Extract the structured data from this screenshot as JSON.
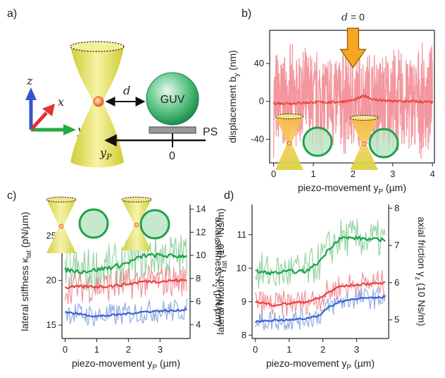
{
  "colors": {
    "red": "#e8413c",
    "pink": "#f28b94",
    "green": "#1ea24a",
    "lightgreen": "#8fd19e",
    "blue": "#3a62c8",
    "lightblue": "#8da6e4",
    "beam": "#d6d43a",
    "beam_light": "#f4f1a0",
    "guv": "#3fb872",
    "arrow": "#f5a623",
    "axis_z": "#3355cc",
    "axis_x": "#e03333",
    "axis_y": "#22aa44"
  },
  "panel_a": {
    "label": "a)",
    "axes": {
      "z": "z",
      "x": "x",
      "y": "y"
    },
    "d_label": "d",
    "guv_label": "GUV",
    "ps_label": "PS",
    "zero_label": "0",
    "yp_label": "y",
    "yp_sub": "P"
  },
  "chart_data": [
    {
      "id": "b",
      "panel_label": "b)",
      "type": "line",
      "title": "",
      "xlabel": "piezo-movement y",
      "xlabel_sub": "P",
      "xlabel_unit": "(µm)",
      "ylabel": "displacement b",
      "ylabel_sub": "y",
      "ylabel_unit": "(nm)",
      "xlim": [
        -0.1,
        4.05
      ],
      "ylim": [
        -65,
        75
      ],
      "xticks": [
        0,
        1,
        2,
        3,
        4
      ],
      "yticks": [
        -40,
        0,
        40
      ],
      "annotation": {
        "text_left": "d",
        "text_right": "= 0",
        "x": 2.0
      },
      "series": [
        {
          "kind": "band",
          "x": [
            0,
            4
          ],
          "noise_amplitude": 62,
          "color": "pink"
        },
        {
          "kind": "mean",
          "x": [
            0,
            0.5,
            1.0,
            1.5,
            2.0,
            2.3,
            2.5,
            3.0,
            3.5,
            4.0
          ],
          "y": [
            -2,
            -2,
            -1,
            -1,
            1,
            6,
            2,
            0,
            0,
            -1
          ],
          "color": "red"
        }
      ]
    },
    {
      "id": "c",
      "panel_label": "c)",
      "type": "line",
      "title": "",
      "xlabel": "piezo-movement y",
      "xlabel_sub": "P",
      "xlabel_unit": "(µm)",
      "ylabel_left": "lateral stiffness κ",
      "ylabel_left_sub": "lat",
      "ylabel_left_unit": "(pN/µm)",
      "ylabel_right": "axial stiffness κ",
      "ylabel_right_sub": "z",
      "ylabel_right_unit": "(pN/µm)",
      "xlim": [
        -0.1,
        3.95
      ],
      "ylim_left": [
        13.5,
        28.5
      ],
      "ylim_right": [
        2.8,
        14.4
      ],
      "xticks": [
        0,
        1,
        2,
        3
      ],
      "yticks_left": [
        15,
        20,
        25
      ],
      "yticks_right": [
        4,
        6,
        8,
        10,
        12,
        14
      ],
      "series": [
        {
          "name": "",
          "axis": "left",
          "color": "green",
          "noise_color": "lightgreen",
          "x": [
            0,
            0.5,
            1.0,
            1.5,
            2.0,
            2.5,
            3.0,
            3.5,
            3.85
          ],
          "y": [
            21.2,
            21.0,
            21.2,
            21.5,
            22.0,
            22.8,
            22.8,
            22.7,
            22.8
          ],
          "noise": 2.0
        },
        {
          "name": "",
          "axis": "left",
          "color": "red",
          "noise_color": "pink",
          "x": [
            0,
            0.5,
            1.0,
            1.5,
            2.0,
            2.5,
            3.0,
            3.5,
            3.85
          ],
          "y": [
            19.2,
            19.3,
            19.3,
            19.4,
            19.6,
            19.9,
            19.9,
            20.0,
            20.0
          ],
          "noise": 1.4
        },
        {
          "name": "",
          "axis": "left",
          "color": "blue",
          "noise_color": "lightblue",
          "x": [
            0,
            0.5,
            1.0,
            1.5,
            2.0,
            2.5,
            3.0,
            3.5,
            3.85
          ],
          "y": [
            16.5,
            16.2,
            16.0,
            16.1,
            16.3,
            16.5,
            16.6,
            16.6,
            16.8
          ],
          "noise": 1.0
        }
      ]
    },
    {
      "id": "d",
      "panel_label": "d)",
      "type": "line",
      "title": "",
      "xlabel": "piezo-movement y",
      "xlabel_sub": "P",
      "xlabel_unit": "(µm)",
      "ylabel_left": "lateral friction γ",
      "ylabel_left_sub": "lat",
      "ylabel_left_unit": "(10",
      "ylabel_left_sup": "-9",
      "ylabel_left_unit2": " Ns/m)",
      "ylabel_right": "axial friction γ",
      "ylabel_right_sub": "z",
      "ylabel_right_unit": "(10   Ns/m)",
      "xlim": [
        -0.1,
        3.95
      ],
      "ylim_left": [
        7.9,
        11.9
      ],
      "ylim_right": [
        4.5,
        8.1
      ],
      "xticks": [
        0,
        1,
        2,
        3
      ],
      "yticks_left": [
        8,
        9,
        10,
        11
      ],
      "yticks_right": [
        5,
        6,
        7,
        8
      ],
      "series": [
        {
          "name": "",
          "axis": "left",
          "color": "green",
          "noise_color": "lightgreen",
          "x": [
            0,
            0.5,
            1.0,
            1.5,
            1.9,
            2.2,
            2.5,
            3.0,
            3.5,
            3.85
          ],
          "y": [
            9.9,
            9.85,
            9.9,
            9.9,
            10.2,
            10.6,
            10.9,
            10.9,
            10.85,
            10.85
          ],
          "noise": 0.45
        },
        {
          "name": "",
          "axis": "left",
          "color": "red",
          "noise_color": "pink",
          "x": [
            0,
            0.5,
            1.0,
            1.5,
            1.9,
            2.2,
            2.5,
            3.0,
            3.5,
            3.85
          ],
          "y": [
            9.0,
            8.9,
            8.95,
            9.0,
            9.1,
            9.3,
            9.45,
            9.5,
            9.55,
            9.55
          ],
          "noise": 0.3
        },
        {
          "name": "",
          "axis": "left",
          "color": "blue",
          "noise_color": "lightblue",
          "x": [
            0,
            0.5,
            1.0,
            1.5,
            1.9,
            2.2,
            2.5,
            3.0,
            3.5,
            3.85
          ],
          "y": [
            8.4,
            8.45,
            8.45,
            8.5,
            8.6,
            8.85,
            9.0,
            9.1,
            9.1,
            9.15
          ],
          "noise": 0.25
        }
      ]
    }
  ]
}
